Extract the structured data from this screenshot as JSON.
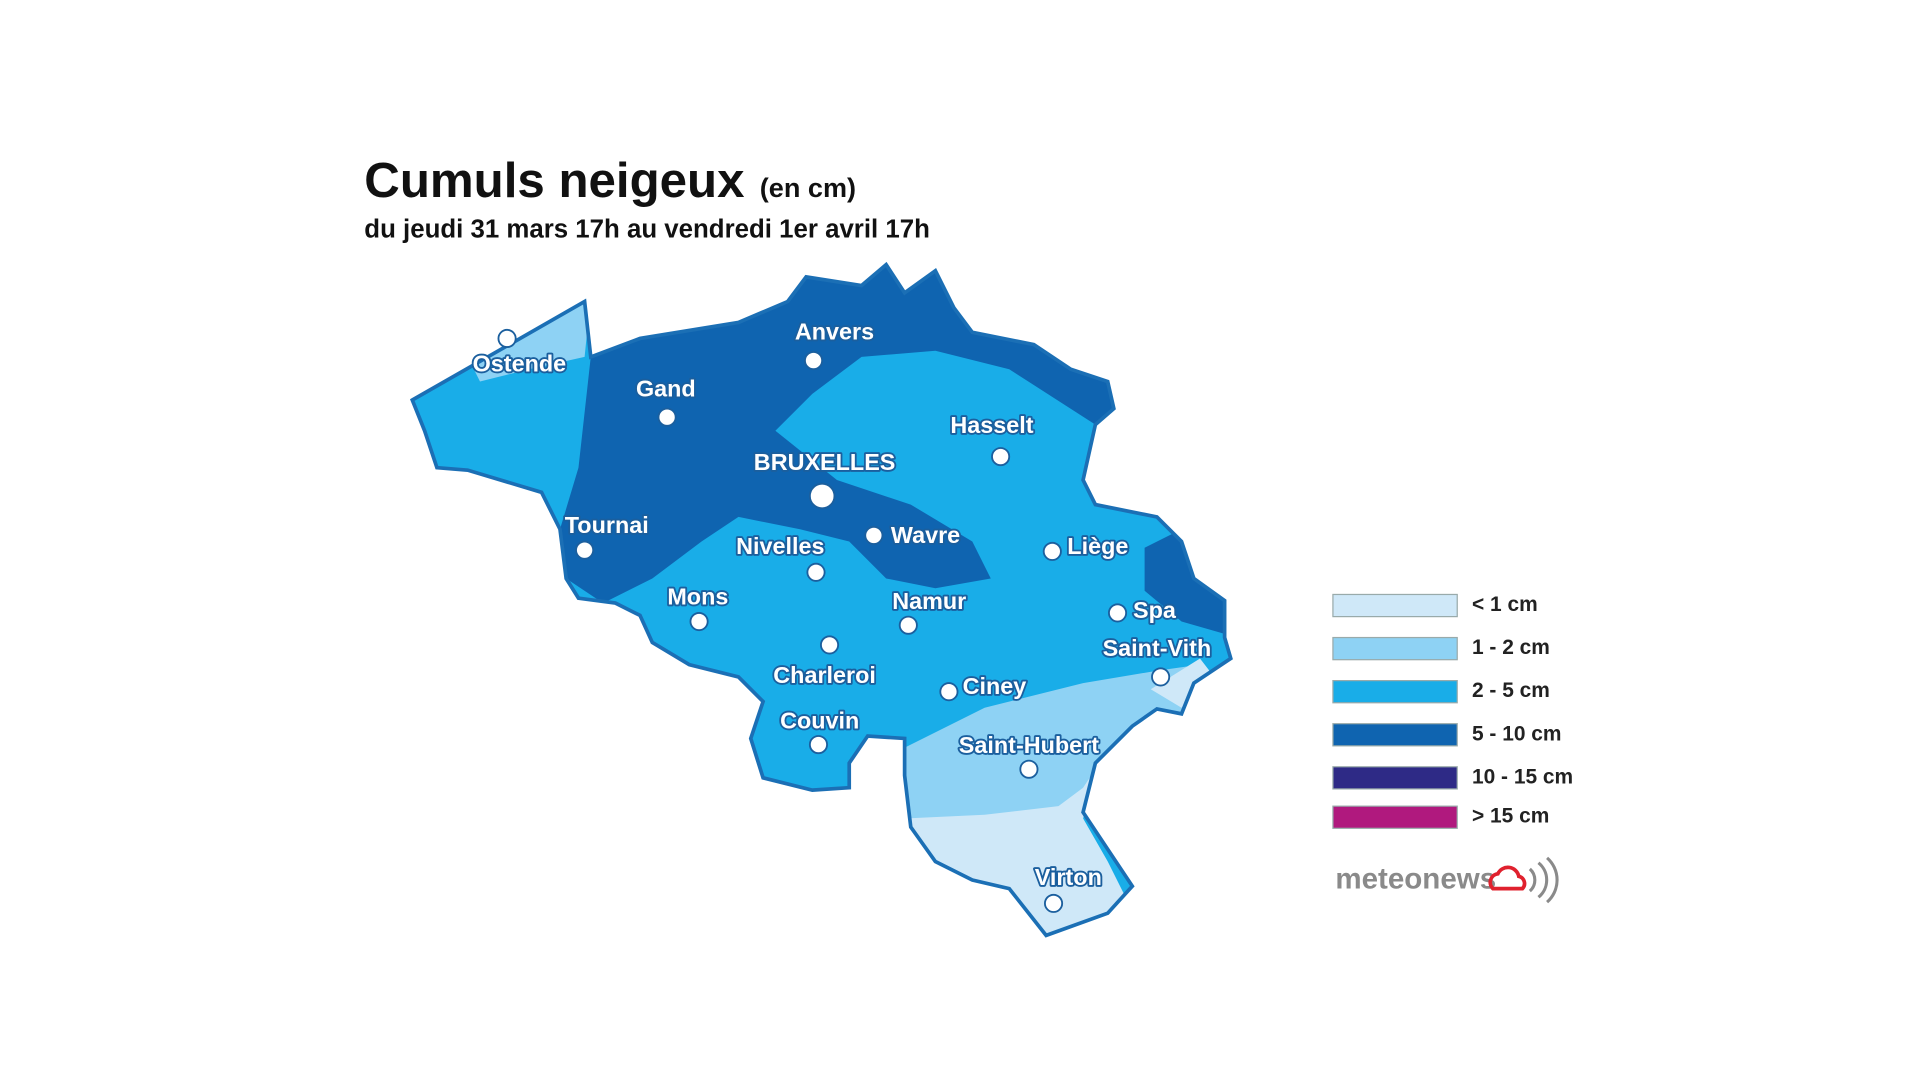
{
  "title": "Cumuls neigeux",
  "title_unit": "(en cm)",
  "subtitle": "du jeudi 31 mars 17h au vendredi 1er avril 17h",
  "cities": [
    "Ostende",
    "Anvers",
    "Gand",
    "Hasselt",
    "BRUXELLES",
    "Tournai",
    "Nivelles",
    "Wavre",
    "Liège",
    "Mons",
    "Namur",
    "Spa",
    "Charleroi",
    "Saint-Vith",
    "Ciney",
    "Couvin",
    "Saint-Hubert",
    "Virton"
  ],
  "legend": [
    {
      "label": "< 1 cm",
      "color": "#cfe8f8"
    },
    {
      "label": "1 - 2 cm",
      "color": "#8ed2f4"
    },
    {
      "label": "2 - 5 cm",
      "color": "#19ade8"
    },
    {
      "label": "5 - 10 cm",
      "color": "#0f64b0"
    },
    {
      "label": "10 - 15 cm",
      "color": "#2e2a86"
    },
    {
      "label": "> 15 cm",
      "color": "#b0197e"
    }
  ],
  "logo": "meteonews"
}
